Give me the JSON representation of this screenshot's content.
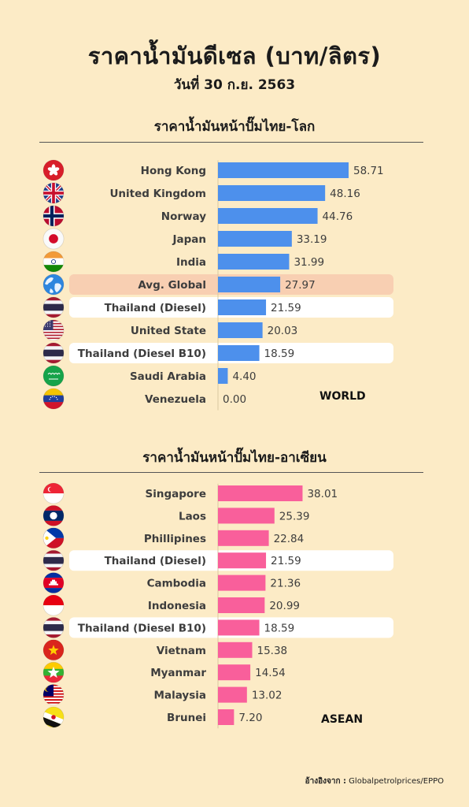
{
  "title": "ราคาน้ำมันดีเซล (บาท/ลิตร)",
  "subtitle": "วันที่ 30 ก.ย. 2563",
  "source": {
    "label": "อ้างอิงจาก :",
    "text": "Globalpetrolprices/EPPO"
  },
  "chart_data": [
    {
      "type": "bar",
      "title": "ราคาน้ำมันหน้าปั๊มไทย-โลก",
      "corner_label": "WORLD",
      "orientation": "horizontal",
      "bar_color": "#4d90ec",
      "categories": [
        "Hong Kong",
        "United Kingdom",
        "Norway",
        "Japan",
        "India",
        "Avg. Global",
        "Thailand (Diesel)",
        "United State",
        "Thailand (Diesel B10)",
        "Saudi Arabia",
        "Venezuela"
      ],
      "values": [
        58.71,
        48.16,
        44.76,
        33.19,
        31.99,
        27.97,
        21.59,
        20.03,
        18.59,
        4.4,
        0.0
      ],
      "value_labels": [
        "58.71",
        "48.16",
        "44.76",
        "33.19",
        "31.99",
        "27.97",
        "21.59",
        "20.03",
        "18.59",
        "4.40",
        "0.00"
      ],
      "highlight": [
        "none",
        "none",
        "none",
        "none",
        "none",
        "salmon",
        "white",
        "none",
        "white",
        "none",
        "none"
      ],
      "flags": [
        "hong-kong-flag-icon",
        "united-kingdom-flag-icon",
        "norway-flag-icon",
        "japan-flag-icon",
        "india-flag-icon",
        "globe-icon",
        "thailand-flag-icon",
        "united-states-flag-icon",
        "thailand-flag-icon",
        "saudi-arabia-flag-icon",
        "venezuela-flag-icon"
      ],
      "highlight_colors": {
        "salmon": "#f8cfb2",
        "white": "#ffffff"
      }
    },
    {
      "type": "bar",
      "title": "ราคาน้ำมันหน้าปั๊มไทย-อาเซียน",
      "corner_label": "ASEAN",
      "orientation": "horizontal",
      "bar_color": "#f95f9b",
      "categories": [
        "Singapore",
        "Laos",
        "Phillipines",
        "Thailand (Diesel)",
        "Cambodia",
        "Indonesia",
        "Thailand (Diesel B10)",
        "Vietnam",
        "Myanmar",
        "Malaysia",
        "Brunei"
      ],
      "values": [
        38.01,
        25.39,
        22.84,
        21.59,
        21.36,
        20.99,
        18.59,
        15.38,
        14.54,
        13.02,
        7.2
      ],
      "value_labels": [
        "38.01",
        "25.39",
        "22.84",
        "21.59",
        "21.36",
        "20.99",
        "18.59",
        "15.38",
        "14.54",
        "13.02",
        "7.20"
      ],
      "highlight": [
        "none",
        "none",
        "none",
        "white",
        "none",
        "none",
        "white",
        "none",
        "none",
        "none",
        "none"
      ],
      "flags": [
        "singapore-flag-icon",
        "laos-flag-icon",
        "philippines-flag-icon",
        "thailand-flag-icon",
        "cambodia-flag-icon",
        "indonesia-flag-icon",
        "thailand-flag-icon",
        "vietnam-flag-icon",
        "myanmar-flag-icon",
        "malaysia-flag-icon",
        "brunei-flag-icon"
      ],
      "highlight_colors": {
        "salmon": "#f8cfb2",
        "white": "#ffffff"
      }
    }
  ]
}
